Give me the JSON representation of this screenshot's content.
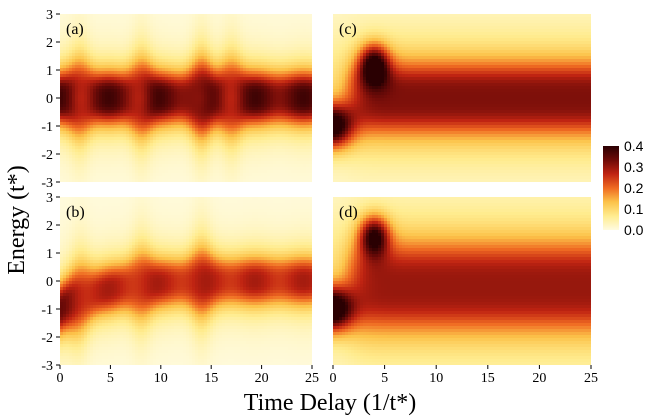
{
  "chart_data": {
    "type": "heatmap",
    "xlabel": "Time Delay (1/t*)",
    "ylabel": "Energy (t*)",
    "xlim": [
      0,
      25
    ],
    "ylim": [
      -3,
      3
    ],
    "x_ticks": [
      "0",
      "5",
      "10",
      "15",
      "20",
      "25"
    ],
    "y_ticks": [
      "-3",
      "-2",
      "-1",
      "0",
      "1",
      "2",
      "3"
    ],
    "colorbar": {
      "range": [
        0.0,
        0.4
      ],
      "ticks": [
        "0.4",
        "0.3",
        "0.2",
        "0.1",
        "0.0"
      ],
      "colors": [
        "#fffbe0",
        "#ffec8f",
        "#fcc34a",
        "#ef6a22",
        "#c02412",
        "#6e0b08",
        "#2a0002"
      ]
    },
    "panels": [
      {
        "label": "(a)",
        "description_values": {
          "center_energy": 0.0,
          "band_halfwidth": 1.0,
          "peak_value": 0.38,
          "oscillation_peaks_time": [
            2,
            8,
            14,
            17
          ],
          "oscillation_amplitude": 0.4
        }
      },
      {
        "label": "(b)",
        "description_values": {
          "center_energy_start": -1.0,
          "center_energy_end": 0.0,
          "band_halfwidth": 1.0,
          "peak_value": 0.34,
          "oscillation_peaks_time": [
            2,
            8,
            14
          ],
          "oscillation_amplitude": 0.4
        }
      },
      {
        "label": "(c)",
        "description_values": {
          "initial_center_energy": -1.0,
          "initial_peak_value": 0.38,
          "bump_time": 4.0,
          "bump_energy": 1.2,
          "steady_center_energy": 0.0,
          "steady_halfwidth": 1.2,
          "steady_value": 0.22
        }
      },
      {
        "label": "(d)",
        "description_values": {
          "initial_center_energy": -1.0,
          "initial_peak_value": 0.4,
          "bump_time": 4.0,
          "bump_energy": 1.6,
          "steady_center_energy": -0.2,
          "steady_halfwidth": 1.5,
          "steady_value": 0.2
        }
      }
    ]
  }
}
